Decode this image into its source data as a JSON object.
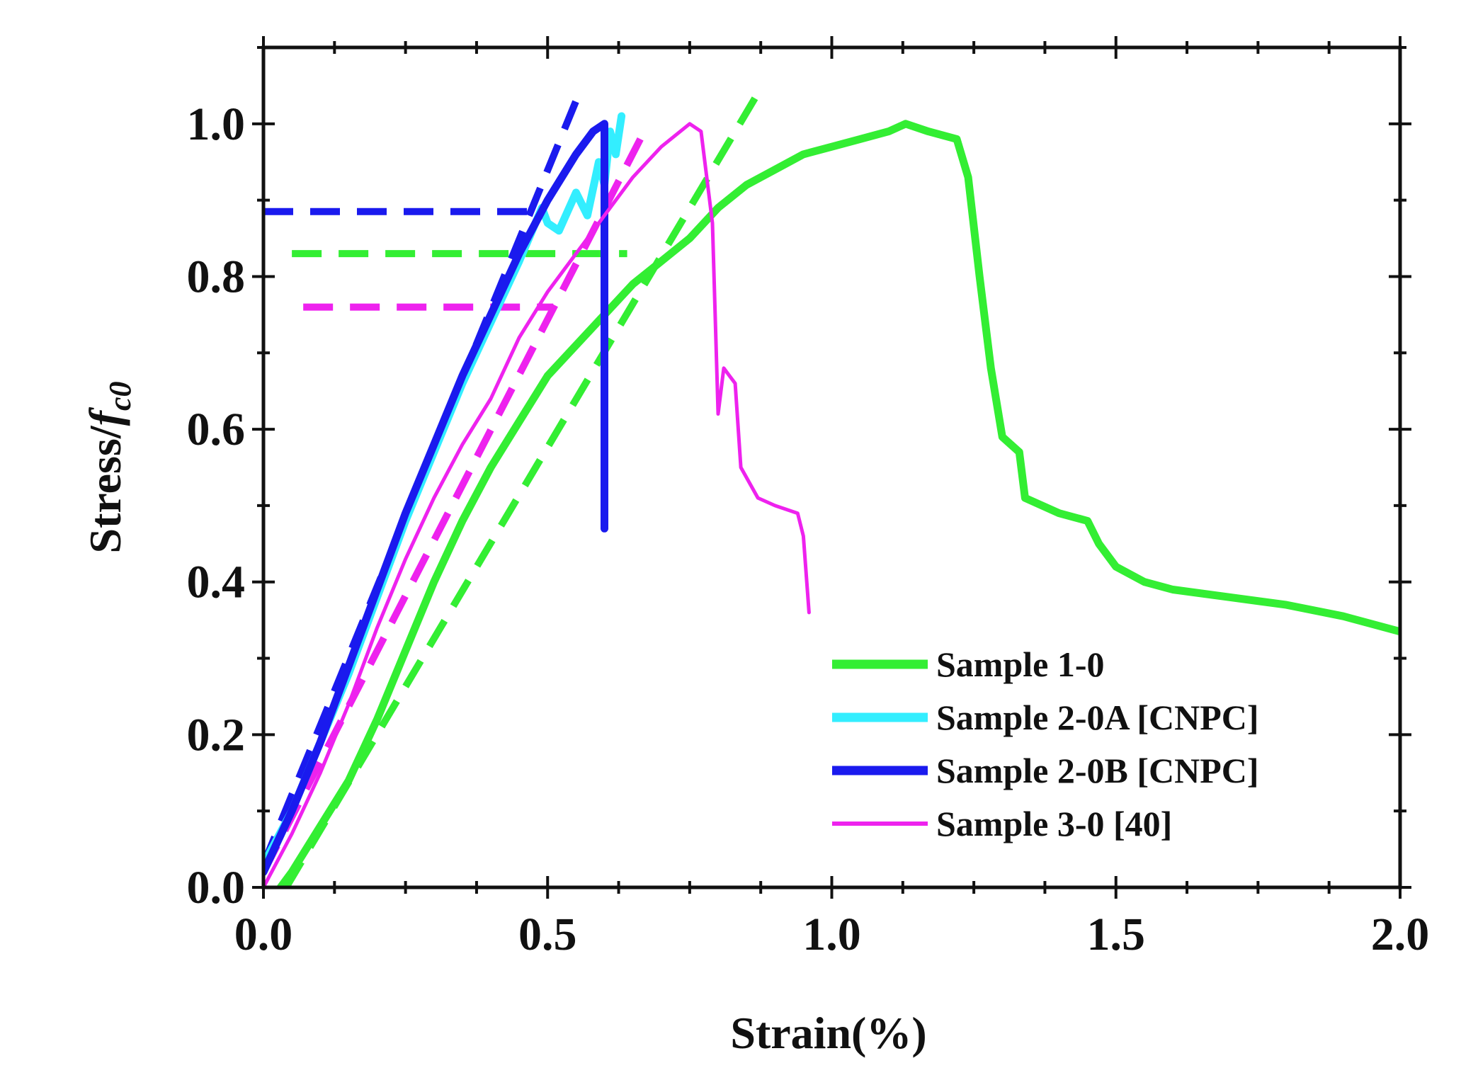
{
  "chart_data": {
    "type": "line",
    "title": "",
    "xlabel": "Strain(%)",
    "ylabel": "Stress/",
    "ylabel_symbol": "f",
    "ylabel_subscript": "c0",
    "xlim": [
      0.0,
      2.0
    ],
    "ylim": [
      0.0,
      1.1
    ],
    "x_ticks": [
      0.0,
      0.5,
      1.0,
      1.5,
      2.0
    ],
    "x_tick_labels": [
      "0.0",
      "0.5",
      "1.0",
      "1.5",
      "2.0"
    ],
    "y_ticks": [
      0.0,
      0.2,
      0.4,
      0.6,
      0.8,
      1.0
    ],
    "y_tick_labels": [
      "0.0",
      "0.2",
      "0.4",
      "0.6",
      "0.8",
      "1.0"
    ],
    "grid": false,
    "legend_position": "bottom-right",
    "series": [
      {
        "name": "Sample 1-0",
        "color": "#33ee33",
        "style": "solid",
        "weight": "thick",
        "points": [
          [
            0.03,
            0.0
          ],
          [
            0.05,
            0.02
          ],
          [
            0.1,
            0.08
          ],
          [
            0.15,
            0.14
          ],
          [
            0.2,
            0.22
          ],
          [
            0.25,
            0.31
          ],
          [
            0.3,
            0.4
          ],
          [
            0.35,
            0.48
          ],
          [
            0.4,
            0.55
          ],
          [
            0.45,
            0.61
          ],
          [
            0.5,
            0.67
          ],
          [
            0.55,
            0.71
          ],
          [
            0.6,
            0.75
          ],
          [
            0.65,
            0.79
          ],
          [
            0.7,
            0.82
          ],
          [
            0.75,
            0.85
          ],
          [
            0.8,
            0.89
          ],
          [
            0.85,
            0.92
          ],
          [
            0.9,
            0.94
          ],
          [
            0.95,
            0.96
          ],
          [
            1.0,
            0.97
          ],
          [
            1.05,
            0.98
          ],
          [
            1.1,
            0.99
          ],
          [
            1.13,
            1.0
          ],
          [
            1.17,
            0.99
          ],
          [
            1.22,
            0.98
          ],
          [
            1.24,
            0.93
          ],
          [
            1.26,
            0.8
          ],
          [
            1.28,
            0.68
          ],
          [
            1.3,
            0.59
          ],
          [
            1.33,
            0.57
          ],
          [
            1.34,
            0.51
          ],
          [
            1.4,
            0.49
          ],
          [
            1.45,
            0.48
          ],
          [
            1.47,
            0.45
          ],
          [
            1.5,
            0.42
          ],
          [
            1.55,
            0.4
          ],
          [
            1.6,
            0.39
          ],
          [
            1.7,
            0.38
          ],
          [
            1.8,
            0.37
          ],
          [
            1.9,
            0.355
          ],
          [
            2.0,
            0.335
          ]
        ]
      },
      {
        "name": "Sample 2-0A [CNPC]",
        "color": "#33eeff",
        "style": "solid",
        "weight": "thick",
        "points": [
          [
            0.0,
            0.03
          ],
          [
            0.05,
            0.1
          ],
          [
            0.1,
            0.19
          ],
          [
            0.15,
            0.28
          ],
          [
            0.2,
            0.38
          ],
          [
            0.25,
            0.48
          ],
          [
            0.3,
            0.57
          ],
          [
            0.35,
            0.66
          ],
          [
            0.4,
            0.74
          ],
          [
            0.45,
            0.82
          ],
          [
            0.49,
            0.89
          ],
          [
            0.5,
            0.87
          ],
          [
            0.52,
            0.86
          ],
          [
            0.55,
            0.91
          ],
          [
            0.57,
            0.88
          ],
          [
            0.59,
            0.95
          ],
          [
            0.6,
            0.92
          ],
          [
            0.61,
            0.99
          ],
          [
            0.62,
            0.96
          ],
          [
            0.63,
            1.01
          ]
        ]
      },
      {
        "name": "Sample 2-0B [CNPC]",
        "color": "#1a1aee",
        "style": "solid",
        "weight": "thick",
        "points": [
          [
            0.0,
            0.02
          ],
          [
            0.05,
            0.1
          ],
          [
            0.1,
            0.19
          ],
          [
            0.15,
            0.29
          ],
          [
            0.2,
            0.39
          ],
          [
            0.25,
            0.49
          ],
          [
            0.3,
            0.58
          ],
          [
            0.35,
            0.67
          ],
          [
            0.4,
            0.75
          ],
          [
            0.45,
            0.83
          ],
          [
            0.5,
            0.9
          ],
          [
            0.55,
            0.96
          ],
          [
            0.58,
            0.99
          ],
          [
            0.6,
            1.0
          ],
          [
            0.6,
            0.47
          ]
        ]
      },
      {
        "name": "Sample 3-0 [40]",
        "color": "#ee22ee",
        "style": "solid",
        "weight": "thin",
        "points": [
          [
            0.0,
            0.0
          ],
          [
            0.05,
            0.07
          ],
          [
            0.1,
            0.15
          ],
          [
            0.15,
            0.24
          ],
          [
            0.2,
            0.34
          ],
          [
            0.25,
            0.43
          ],
          [
            0.3,
            0.51
          ],
          [
            0.35,
            0.58
          ],
          [
            0.4,
            0.64
          ],
          [
            0.45,
            0.72
          ],
          [
            0.5,
            0.78
          ],
          [
            0.55,
            0.83
          ],
          [
            0.6,
            0.88
          ],
          [
            0.65,
            0.93
          ],
          [
            0.7,
            0.97
          ],
          [
            0.75,
            1.0
          ],
          [
            0.77,
            0.99
          ],
          [
            0.79,
            0.87
          ],
          [
            0.8,
            0.62
          ],
          [
            0.81,
            0.68
          ],
          [
            0.82,
            0.67
          ],
          [
            0.83,
            0.66
          ],
          [
            0.84,
            0.55
          ],
          [
            0.87,
            0.51
          ],
          [
            0.9,
            0.5
          ],
          [
            0.94,
            0.49
          ],
          [
            0.95,
            0.46
          ],
          [
            0.96,
            0.36
          ]
        ]
      }
    ],
    "reference_lines": [
      {
        "color": "#33ee33",
        "points": [
          [
            0.04,
            0.0
          ],
          [
            0.87,
            1.04
          ]
        ]
      },
      {
        "color": "#1a1aee",
        "points": [
          [
            0.0,
            0.03
          ],
          [
            0.55,
            1.03
          ]
        ]
      },
      {
        "color": "#ee22ee",
        "points": [
          [
            0.0,
            0.02
          ],
          [
            0.67,
            0.99
          ]
        ]
      },
      {
        "color": "#33ee33",
        "points": [
          [
            0.05,
            0.83
          ],
          [
            0.64,
            0.83
          ]
        ]
      },
      {
        "color": "#1a1aee",
        "points": [
          [
            0.0,
            0.885
          ],
          [
            0.47,
            0.885
          ]
        ]
      },
      {
        "color": "#ee22ee",
        "points": [
          [
            0.07,
            0.76
          ],
          [
            0.51,
            0.76
          ]
        ]
      }
    ]
  }
}
